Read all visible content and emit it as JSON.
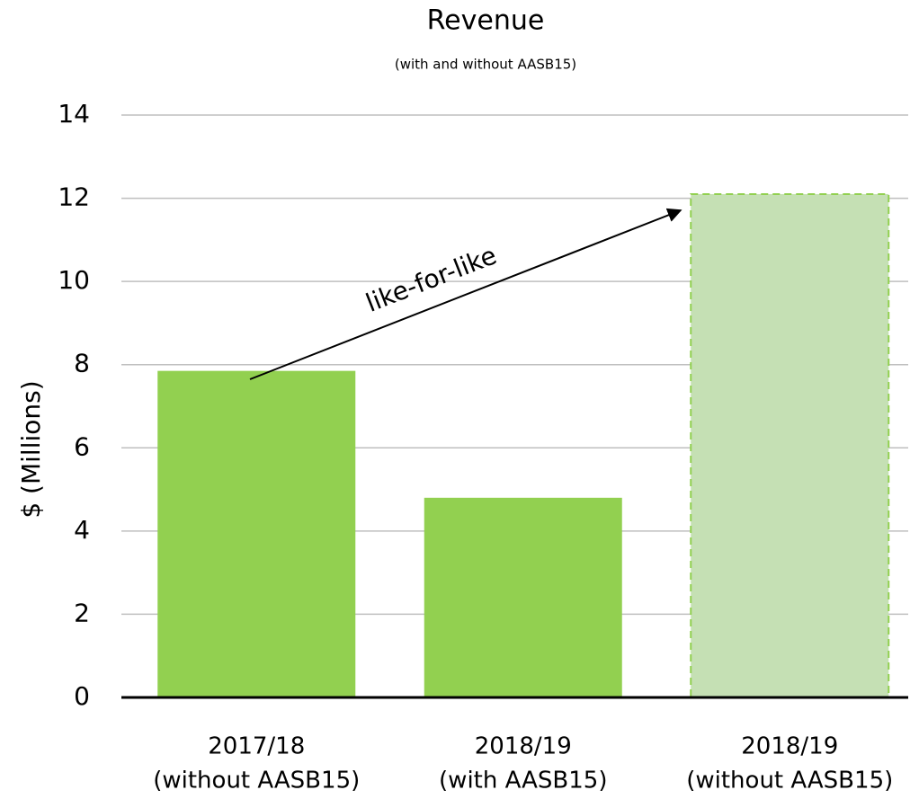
{
  "chart_data": {
    "type": "bar",
    "title": "Revenue",
    "subtitle": "(with and without AASB15)",
    "y_label": "$ (Millions)",
    "categories": [
      [
        "2017/18",
        "(without AASB15)"
      ],
      [
        "2018/19",
        "(with AASB15)"
      ],
      [
        "2018/19",
        "(without AASB15)"
      ]
    ],
    "values": [
      7.85,
      4.8,
      12.1
    ],
    "colors": [
      "#92d050",
      "#92d050",
      "#c5e0b4"
    ],
    "bar_styles": [
      "solid",
      "solid",
      "dashed"
    ],
    "ylim": [
      0,
      14
    ],
    "yticks": [
      0,
      2,
      4,
      6,
      8,
      10,
      12,
      14
    ],
    "grid": true,
    "annotations": [
      "like-for-like"
    ]
  }
}
